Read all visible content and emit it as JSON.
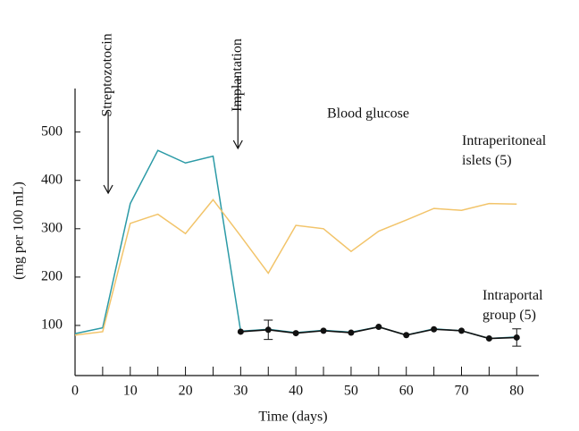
{
  "chart_data": {
    "type": "line",
    "title": "Blood glucose",
    "x_label": "Time (days)",
    "y_label": "(mg per 100 mL)",
    "xlim": [
      0,
      84
    ],
    "ylim": [
      0,
      590
    ],
    "xticks": [
      0,
      10,
      20,
      30,
      40,
      50,
      60,
      70,
      80
    ],
    "xminorticks": [
      5,
      15,
      25,
      35,
      45,
      55,
      65,
      75
    ],
    "yticks": [
      100,
      200,
      300,
      400,
      500
    ],
    "series": [
      {
        "color": "#2b9aa6",
        "markers": false,
        "x": [
          0,
          5,
          10,
          15,
          20,
          25,
          30,
          35,
          40,
          45,
          50,
          55,
          60,
          65,
          70,
          75,
          80
        ],
        "values": [
          83,
          95,
          352,
          462,
          436,
          450,
          88,
          92,
          85,
          90,
          86,
          97,
          80,
          93,
          89,
          73,
          76
        ]
      },
      {
        "color": "#f2c46a",
        "markers": false,
        "label_lines": [
          "Intraperitoneal",
          "islets (5)"
        ],
        "x": [
          0,
          5,
          10,
          15,
          20,
          25,
          30,
          35,
          40,
          45,
          50,
          55,
          60,
          65,
          70,
          75,
          80
        ],
        "values": [
          80,
          87,
          311,
          330,
          290,
          360,
          285,
          208,
          307,
          300,
          253,
          295,
          318,
          342,
          338,
          352,
          351
        ]
      },
      {
        "color": "#111111",
        "markers": true,
        "label_lines": [
          "Intraportal",
          "group (5)"
        ],
        "x": [
          30,
          35,
          40,
          45,
          50,
          55,
          60,
          65,
          70,
          75,
          80
        ],
        "values": [
          87,
          91,
          84,
          89,
          85,
          97,
          80,
          92,
          89,
          73,
          75
        ],
        "errors": [
          null,
          20,
          null,
          null,
          null,
          null,
          null,
          null,
          null,
          null,
          18
        ]
      }
    ],
    "annotations": [
      {
        "text": "Streptozotocin",
        "x": 6
      },
      {
        "text": "Implantation",
        "x": 29.5
      }
    ]
  }
}
